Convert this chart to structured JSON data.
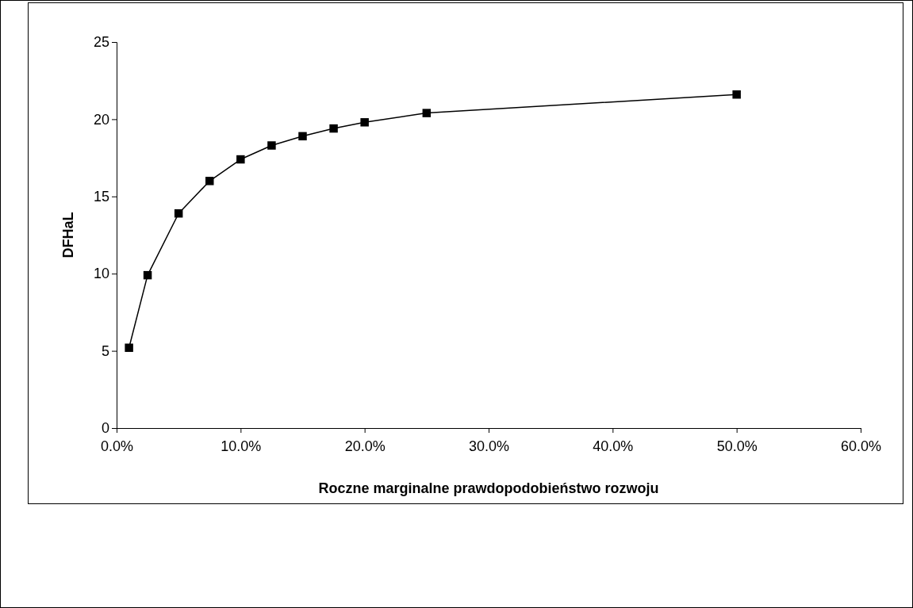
{
  "chart_data": {
    "type": "line",
    "xlabel": "Roczne marginalne prawdopodobieństwo rozwoju",
    "ylabel": "DFHaL",
    "x": [
      1,
      2.5,
      5,
      7.5,
      10,
      12.5,
      15,
      17.5,
      20,
      25,
      50
    ],
    "series": [
      {
        "color": "#000000",
        "values": [
          5.2,
          9.9,
          13.9,
          16.0,
          17.4,
          18.3,
          18.9,
          19.4,
          19.8,
          20.4,
          21.6
        ]
      }
    ],
    "xlim": [
      0,
      60
    ],
    "xticks": [
      {
        "value": 0,
        "label": "0.0%"
      },
      {
        "value": 10,
        "label": "10.0%"
      },
      {
        "value": 20,
        "label": "20.0%"
      },
      {
        "value": 30,
        "label": "30.0%"
      },
      {
        "value": 40,
        "label": "40.0%"
      },
      {
        "value": 50,
        "label": "50.0%"
      },
      {
        "value": 60,
        "label": "60.0%"
      }
    ],
    "ylim": [
      0,
      25
    ],
    "yticks": [
      0,
      5,
      10,
      15,
      20,
      25
    ],
    "grid": false,
    "marker": "square",
    "line_style": "solid"
  }
}
